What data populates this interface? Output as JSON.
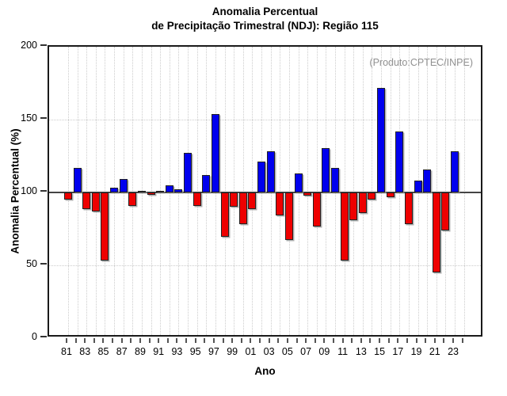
{
  "title": {
    "line1": "Anomalia Percentual",
    "line2": "de Precipitação Trimestral (NDJ): Região 115"
  },
  "annotation": "(Produto:CPTEC/INPE)",
  "chart_data": {
    "type": "bar",
    "title": "Anomalia Percentual de Precipitação Trimestral (NDJ): Região 115",
    "xlabel": "Ano",
    "ylabel": "Anomalia Percentual (%)",
    "ylim": [
      0,
      200
    ],
    "ytick_values": [
      0,
      50,
      100,
      150,
      200
    ],
    "ytick_labels": [
      "0",
      "50",
      "100",
      "150",
      "200"
    ],
    "baseline": 100,
    "grid": "vertical dotted per year; horizontal dotted at 50 and 150; solid line at 100",
    "legend": "none",
    "x_axis_tick_count": 44,
    "x_tick_labels": [
      "81",
      "83",
      "85",
      "87",
      "89",
      "91",
      "93",
      "95",
      "97",
      "99",
      "01",
      "03",
      "05",
      "07",
      "09",
      "11",
      "13",
      "15",
      "17",
      "19",
      "21",
      "23"
    ],
    "categories": [
      1981,
      1982,
      1983,
      1984,
      1985,
      1986,
      1987,
      1988,
      1989,
      1990,
      1991,
      1992,
      1993,
      1994,
      1995,
      1996,
      1997,
      1998,
      1999,
      2000,
      2001,
      2002,
      2003,
      2004,
      2005,
      2006,
      2007,
      2008,
      2009,
      2010,
      2011,
      2012,
      2013,
      2014,
      2015,
      2016,
      2017,
      2018,
      2019,
      2020,
      2021,
      2022,
      2023
    ],
    "values": [
      95,
      117,
      88.5,
      87,
      53,
      103.5,
      109,
      91,
      101,
      98.5,
      101,
      105,
      102,
      127,
      91,
      112,
      154,
      69.5,
      90,
      78,
      88.5,
      121,
      128,
      84,
      67.5,
      113,
      98,
      76.5,
      130.5,
      117,
      53.5,
      81,
      86,
      95,
      172,
      96.5,
      142,
      78.5,
      108,
      116,
      45,
      74,
      128
    ],
    "colors": {
      "above_baseline": "#0000ee",
      "below_baseline": "#ee0000",
      "bar_border": "#222222",
      "baseline_line": "#444444",
      "frame": "#1a1a1a",
      "gridline": "#cccccc",
      "annotation_text": "#909090",
      "text": "#000000"
    }
  }
}
